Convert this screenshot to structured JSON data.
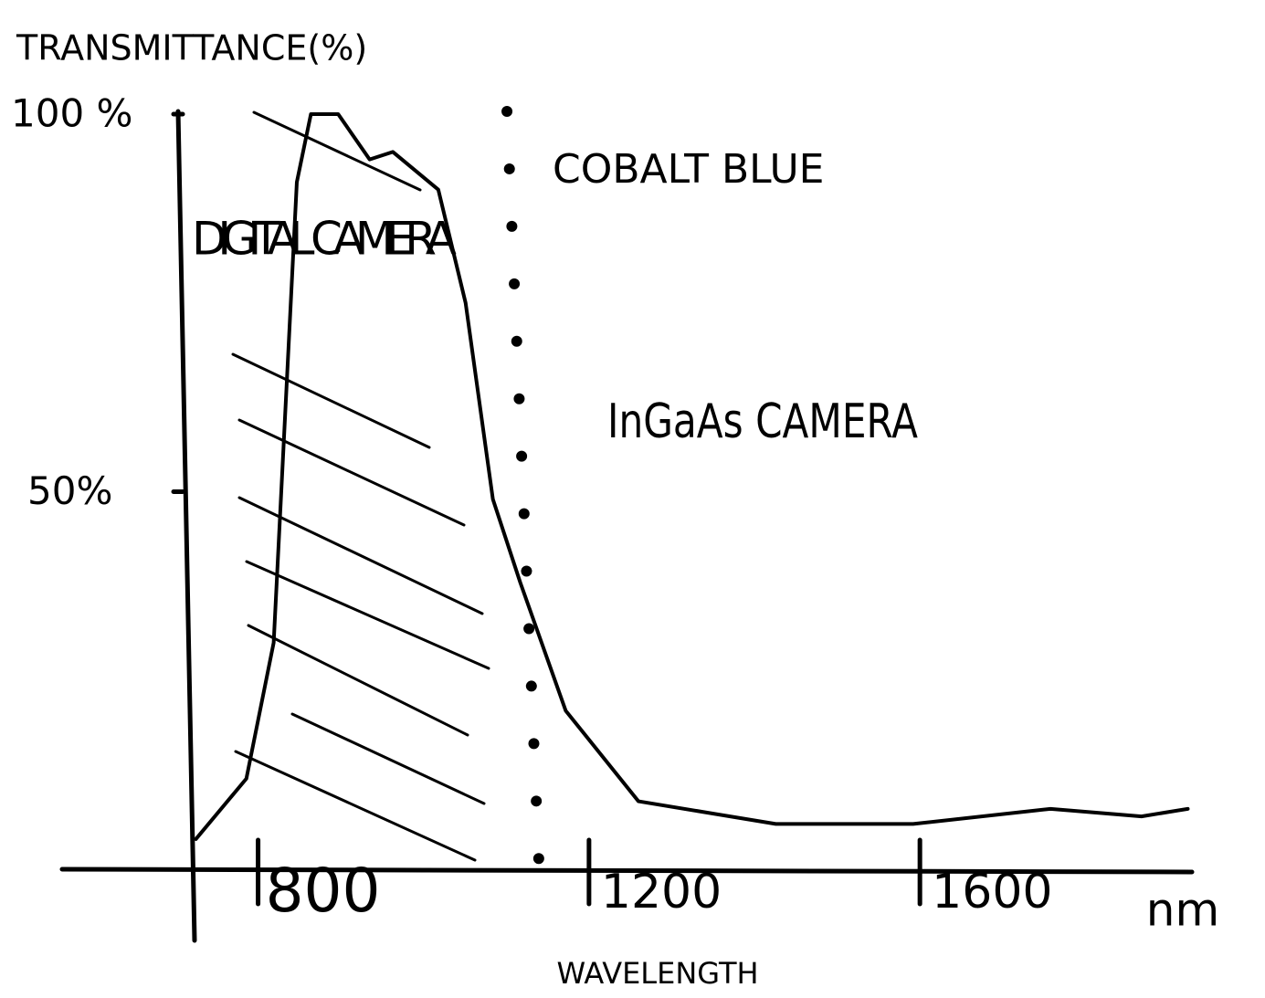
{
  "chart_data": {
    "type": "line",
    "y_label": "TRANSMITTANCE(%)",
    "x_label": "WAVELENGTH",
    "x_unit": "nm",
    "x": [
      716,
      777,
      810,
      827,
      838,
      855,
      888,
      926,
      954,
      1009,
      1042,
      1075,
      1108,
      1163,
      1251,
      1417,
      1583,
      1749,
      1859,
      1915
    ],
    "series": [
      {
        "color": "#000000",
        "values": [
          4,
          12,
          30,
          67,
          91,
          100,
          100,
          94,
          95,
          90,
          75,
          49,
          38,
          21,
          9,
          6,
          6,
          8,
          7,
          8
        ]
      }
    ],
    "xlim": [
      700,
      1920
    ],
    "ylim": [
      0,
      100
    ],
    "xticks": [
      800,
      1200,
      1600
    ],
    "yticks": [
      {
        "value": 50,
        "label": "50%"
      },
      {
        "value": 100,
        "label": "100 %"
      }
    ],
    "cutoff": {
      "x": 1092,
      "label": "COBALT BLUE"
    },
    "annotations": [
      "DIGITAL CAMERA",
      "InGaAs CAMERA"
    ]
  }
}
